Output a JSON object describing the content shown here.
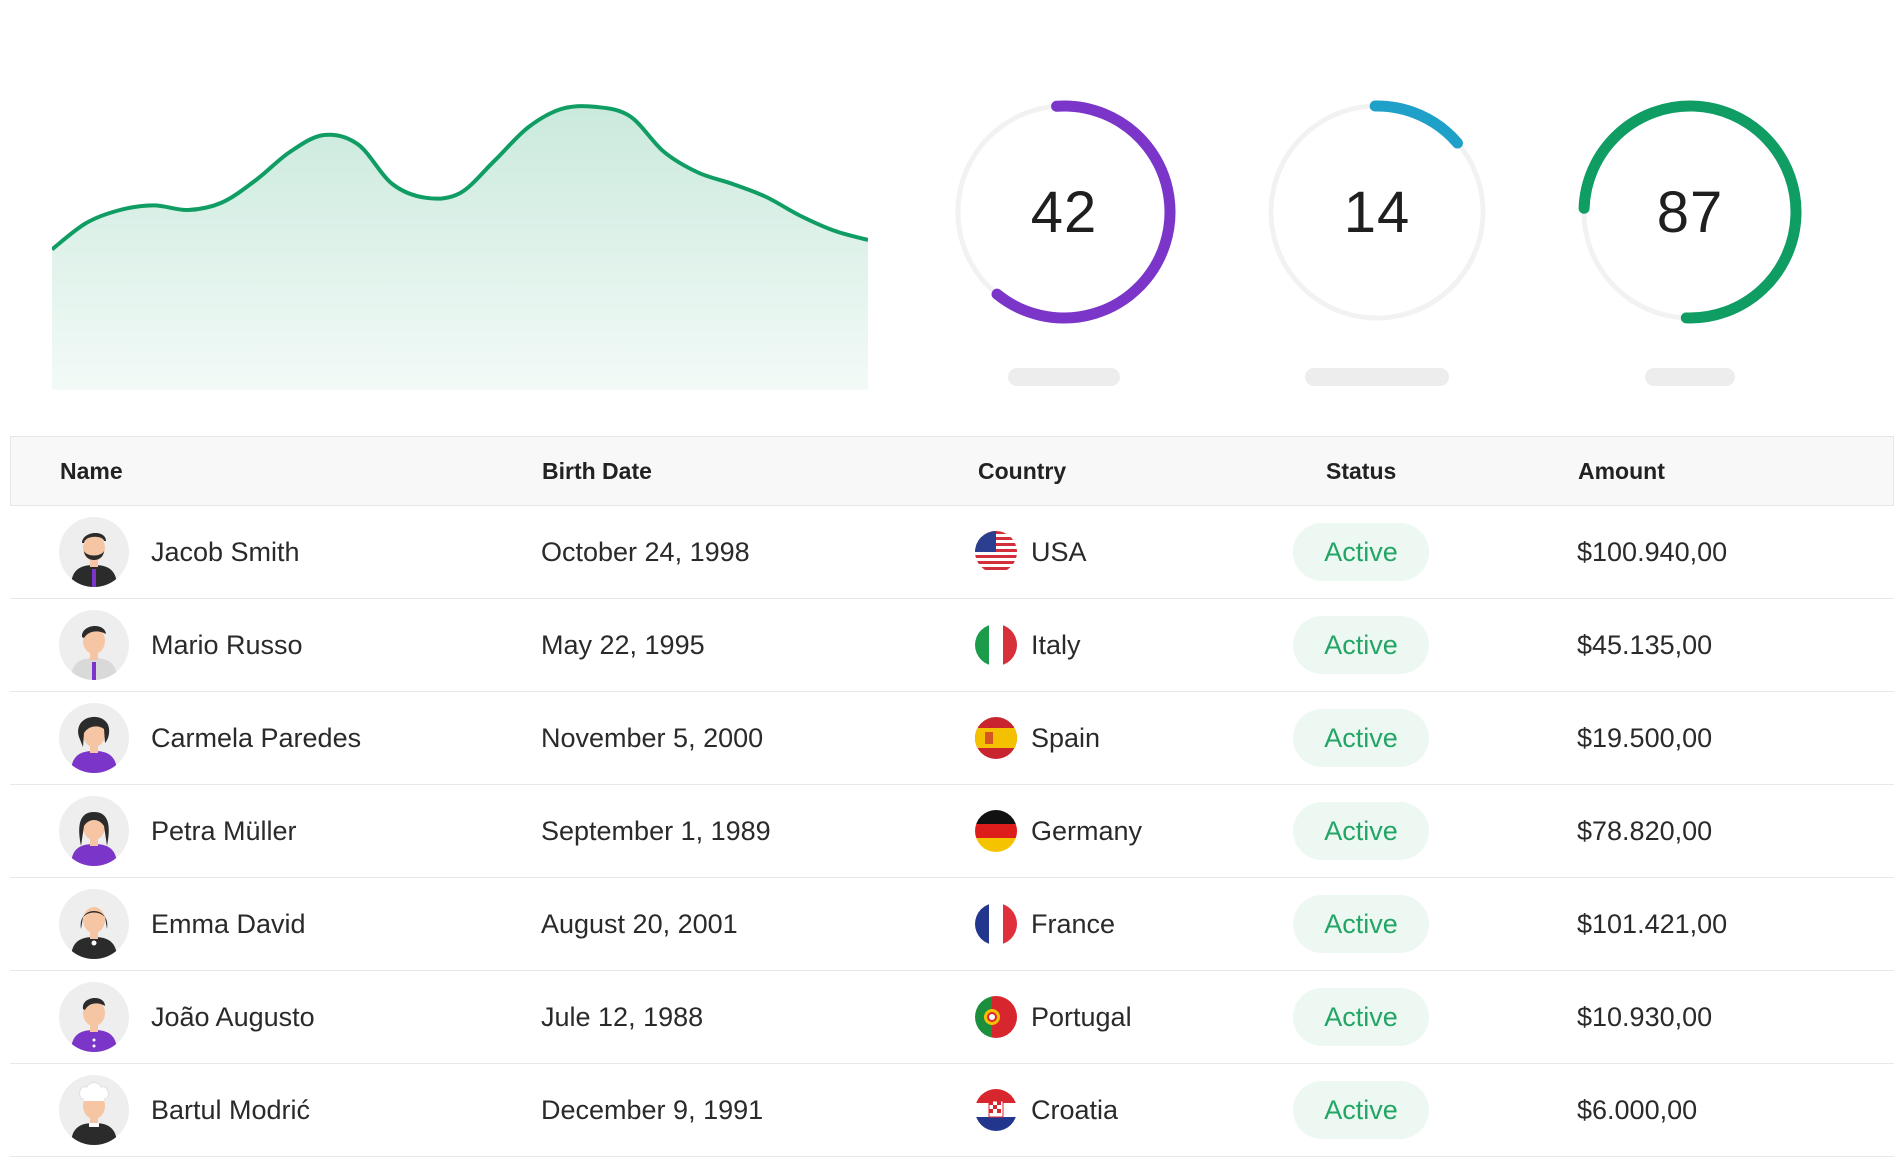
{
  "colors": {
    "chart_line": "#0f9d63",
    "gauge_1": "#7b35c9",
    "gauge_2": "#1fa0c8",
    "gauge_3": "#0f9d63",
    "gauge_track": "#f2f2f2",
    "status_text": "#22a565",
    "status_bg": "#eef8f2"
  },
  "chart_data": {
    "type": "area",
    "values": [
      150,
      178,
      192,
      197,
      192,
      200,
      224,
      254,
      272,
      262,
      220,
      205,
      210,
      244,
      280,
      300,
      302,
      292,
      254,
      232,
      220,
      206,
      186,
      170,
      160
    ]
  },
  "gauges": [
    {
      "value": "42",
      "percent": 62,
      "start_deg": 0,
      "color_key": "gauge_1"
    },
    {
      "value": "14",
      "percent": 14,
      "start_deg": 0,
      "color_key": "gauge_2"
    },
    {
      "value": "87",
      "percent": 75,
      "start_deg": 0,
      "color_key": "gauge_3"
    }
  ],
  "table": {
    "headers": {
      "name": "Name",
      "birth_date": "Birth Date",
      "country": "Country",
      "status": "Status",
      "amount": "Amount"
    },
    "rows": [
      {
        "name": "Jacob Smith",
        "birth_date": "October 24, 1998",
        "country": "USA",
        "flag": "usa-flag-icon",
        "status": "Active",
        "amount": "$100.940,00",
        "avatar": "man-bearded-avatar"
      },
      {
        "name": "Mario Russo",
        "birth_date": "May 22, 1995",
        "country": "Italy",
        "flag": "italy-flag-icon",
        "status": "Active",
        "amount": "$45.135,00",
        "avatar": "man-tie-avatar"
      },
      {
        "name": "Carmela Paredes",
        "birth_date": "November 5, 2000",
        "country": "Spain",
        "flag": "spain-flag-icon",
        "status": "Active",
        "amount": "$19.500,00",
        "avatar": "woman-curly-avatar"
      },
      {
        "name": "Petra Müller",
        "birth_date": "September 1, 1989",
        "country": "Germany",
        "flag": "germany-flag-icon",
        "status": "Active",
        "amount": "$78.820,00",
        "avatar": "woman-long-hair-avatar"
      },
      {
        "name": "Emma David",
        "birth_date": "August 20, 2001",
        "country": "France",
        "flag": "france-flag-icon",
        "status": "Active",
        "amount": "$101.421,00",
        "avatar": "woman-bob-avatar"
      },
      {
        "name": "João Augusto",
        "birth_date": "Jule 12, 1988",
        "country": "Portugal",
        "flag": "portugal-flag-icon",
        "status": "Active",
        "amount": "$10.930,00",
        "avatar": "man-purple-shirt-avatar"
      },
      {
        "name": "Bartul Modrić",
        "birth_date": "December 9, 1991",
        "country": "Croatia",
        "flag": "croatia-flag-icon",
        "status": "Active",
        "amount": "$6.000,00",
        "avatar": "man-chef-avatar"
      }
    ]
  }
}
